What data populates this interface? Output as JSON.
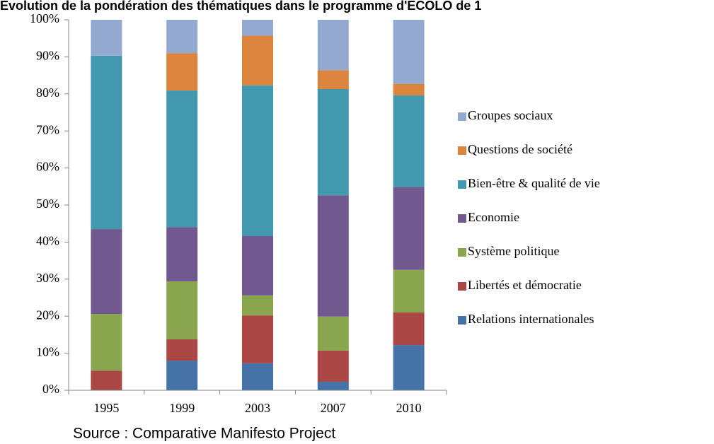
{
  "chart_data": {
    "type": "stacked_bar",
    "title": "Evolution de la pondération des thématiques dans le programme d'ECOLO de 1",
    "source": "Source : Comparative Manifesto Project",
    "categories": [
      "1995",
      "1999",
      "2003",
      "2007",
      "2010"
    ],
    "series": [
      {
        "name": "Relations internationales",
        "color": "#4572a7",
        "values": [
          0,
          8,
          7.3,
          2.3,
          12.2
        ]
      },
      {
        "name": "Libertés et démocratie",
        "color": "#aa4643",
        "values": [
          5.3,
          5.8,
          12.9,
          8.4,
          8.8
        ]
      },
      {
        "name": "Système politique",
        "color": "#89a54e",
        "values": [
          15.3,
          15.6,
          5.4,
          9.2,
          11.5
        ]
      },
      {
        "name": "Economie",
        "color": "#71588f",
        "values": [
          22.9,
          14.6,
          16,
          32.7,
          22.4
        ]
      },
      {
        "name": "Bien-être & qualité de vie",
        "color": "#4198af",
        "values": [
          46.8,
          36.9,
          40.7,
          28.7,
          24.7
        ]
      },
      {
        "name": "Questions de société",
        "color": "#db843d",
        "values": [
          0,
          10.1,
          13.4,
          5.1,
          3.1
        ]
      },
      {
        "name": "Groupes sociaux",
        "color": "#93a9cf",
        "values": [
          9.7,
          9,
          4.3,
          13.6,
          17.3
        ]
      }
    ],
    "ylim": [
      0,
      100
    ],
    "yticks": [
      {
        "value": 0,
        "label": "0%"
      },
      {
        "value": 10,
        "label": "10%"
      },
      {
        "value": 20,
        "label": "20%"
      },
      {
        "value": 30,
        "label": "30%"
      },
      {
        "value": 40,
        "label": "40%"
      },
      {
        "value": 50,
        "label": "50%"
      },
      {
        "value": 60,
        "label": "60%"
      },
      {
        "value": 70,
        "label": "70%"
      },
      {
        "value": 80,
        "label": "80%"
      },
      {
        "value": 90,
        "label": "90%"
      },
      {
        "value": 100,
        "label": "100%"
      }
    ],
    "legend": "right",
    "grid": false
  }
}
